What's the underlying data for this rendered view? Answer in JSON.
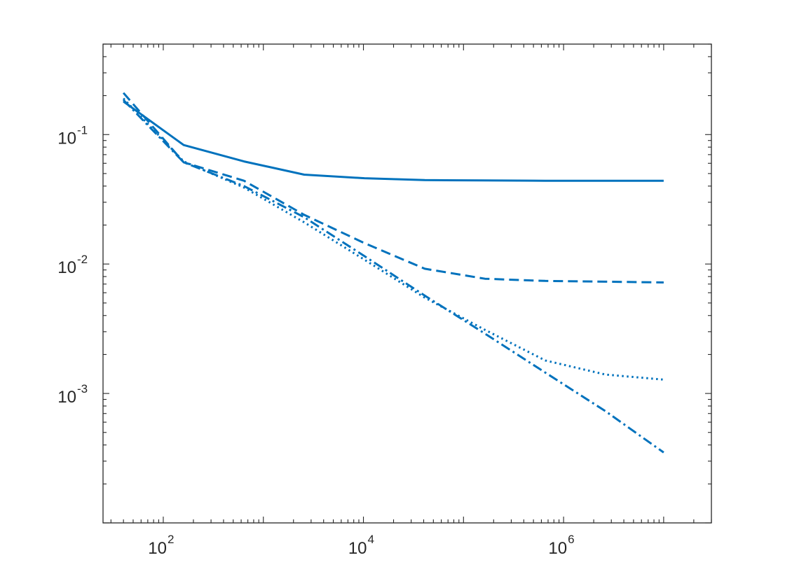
{
  "chart_data": {
    "type": "line",
    "title": "",
    "xlabel": "",
    "ylabel": "",
    "xscale": "log",
    "yscale": "log",
    "xlim": [
      25,
      30000000
    ],
    "ylim": [
      0.0001,
      0.5
    ],
    "grid": false,
    "legend": "none",
    "line_color": "#0072BD",
    "x_ticks": [
      {
        "value": 100,
        "base": "10",
        "exp": "2"
      },
      {
        "value": 10000,
        "base": "10",
        "exp": "4"
      },
      {
        "value": 1000000,
        "base": "10",
        "exp": "6"
      }
    ],
    "y_ticks": [
      {
        "value": 0.1,
        "base": "10",
        "exp": "-1"
      },
      {
        "value": 0.01,
        "base": "10",
        "exp": "-2"
      },
      {
        "value": 0.001,
        "base": "10",
        "exp": "-3"
      }
    ],
    "x": [
      40,
      160,
      640,
      2560,
      10240,
      40960,
      163840,
      655360,
      2621440,
      10000000
    ],
    "series": [
      {
        "style": "solid",
        "values": [
          0.18,
          0.083,
          0.062,
          0.049,
          0.046,
          0.0445,
          0.0442,
          0.044,
          0.044,
          0.044
        ]
      },
      {
        "style": "dashed",
        "values": [
          0.21,
          0.061,
          0.044,
          0.024,
          0.0145,
          0.0092,
          0.0077,
          0.0074,
          0.0073,
          0.0072
        ]
      },
      {
        "style": "dotted",
        "values": [
          0.19,
          0.062,
          0.039,
          0.021,
          0.0108,
          0.0055,
          0.0031,
          0.0018,
          0.0014,
          0.00128
        ]
      },
      {
        "style": "dashdot",
        "values": [
          0.185,
          0.061,
          0.04,
          0.023,
          0.0115,
          0.0057,
          0.0029,
          0.00145,
          0.00073,
          0.00035
        ]
      }
    ]
  }
}
